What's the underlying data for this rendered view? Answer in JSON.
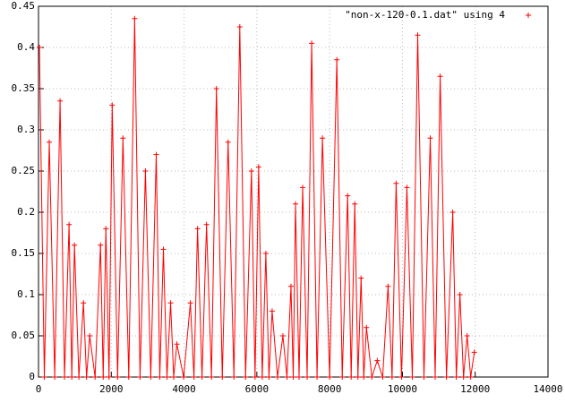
{
  "chart_data": {
    "type": "scatter",
    "grid": true,
    "legend": "top-right",
    "xlim": [
      0,
      14000
    ],
    "ylim": [
      0,
      0.45
    ],
    "xticks": [
      0,
      2000,
      4000,
      6000,
      8000,
      10000,
      12000,
      14000
    ],
    "yticks": [
      0,
      0.05,
      0.1,
      0.15,
      0.2,
      0.25,
      0.3,
      0.35,
      0.4,
      0.45
    ],
    "series": [
      {
        "name": "\"non-x-120-0.1.dat\" using 4",
        "color": "#ff0000",
        "x": [
          25,
          160,
          296,
          445,
          593,
          715,
          840,
          915,
          988,
          1110,
          1235,
          1320,
          1407,
          1555,
          1704,
          1778,
          1852,
          1938,
          2025,
          2173,
          2321,
          2480,
          2642,
          2790,
          2938,
          3085,
          3235,
          3333,
          3432,
          3530,
          3630,
          3715,
          3802,
          3988,
          4173,
          4272,
          4370,
          4493,
          4617,
          4753,
          4889,
          5050,
          5210,
          5370,
          5531,
          5690,
          5852,
          5950,
          6049,
          6148,
          6247,
          6333,
          6420,
          6568,
          6716,
          6827,
          6938,
          7000,
          7062,
          7160,
          7259,
          7382,
          7506,
          7654,
          7802,
          8000,
          8198,
          8346,
          8494,
          8592,
          8691,
          8778,
          8864,
          8938,
          9012,
          9160,
          9309,
          9457,
          9605,
          9716,
          9827,
          9975,
          10123,
          10272,
          10420,
          10592,
          10765,
          10900,
          11037,
          11210,
          11383,
          11481,
          11580,
          11679,
          11778,
          11876,
          11975
        ],
        "values": [
          0.4,
          0,
          0.285,
          0,
          0.335,
          0,
          0.185,
          0,
          0.16,
          0,
          0.09,
          0,
          0.05,
          0,
          0.16,
          0,
          0.18,
          0,
          0.33,
          0,
          0.29,
          0,
          0.435,
          0,
          0.25,
          0,
          0.27,
          0,
          0.155,
          0,
          0.09,
          0,
          0.04,
          0,
          0.09,
          0,
          0.18,
          0,
          0.185,
          0,
          0.35,
          0,
          0.285,
          0,
          0.425,
          0,
          0.25,
          0,
          0.255,
          0,
          0.15,
          0,
          0.08,
          0,
          0.05,
          0,
          0.11,
          0,
          0.21,
          0,
          0.23,
          0,
          0.405,
          0,
          0.29,
          0,
          0.385,
          0,
          0.22,
          0,
          0.21,
          0,
          0.12,
          0,
          0.06,
          0,
          0.02,
          0,
          0.11,
          0,
          0.235,
          0,
          0.23,
          0,
          0.415,
          0,
          0.29,
          0,
          0.365,
          0,
          0.2,
          0,
          0.1,
          0,
          0.05,
          0,
          0.03
        ]
      }
    ]
  }
}
